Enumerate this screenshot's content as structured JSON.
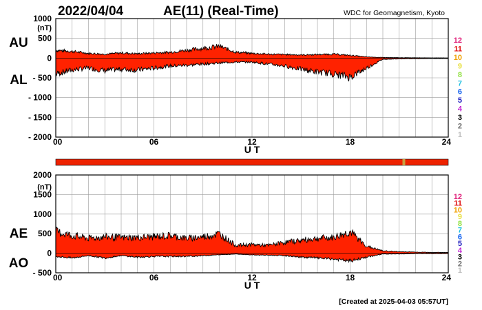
{
  "header": {
    "date": "2022/04/04",
    "title": "AE(11) (Real-Time)",
    "source": "WDC for Geomagnetism, Kyoto"
  },
  "footer": {
    "created": "[Created at 2025-04-03 05:57UT]"
  },
  "legend_levels": [
    {
      "label": "12",
      "color": "#e0207a"
    },
    {
      "label": "11",
      "color": "#e01010"
    },
    {
      "label": "10",
      "color": "#f0a000"
    },
    {
      "label": "9",
      "color": "#e8e040"
    },
    {
      "label": "8",
      "color": "#90e040"
    },
    {
      "label": "7",
      "color": "#20c0e0"
    },
    {
      "label": "6",
      "color": "#1060f0"
    },
    {
      "label": "5",
      "color": "#2020c0"
    },
    {
      "label": "4",
      "color": "#c020d0"
    },
    {
      "label": "3",
      "color": "#000000"
    },
    {
      "label": "2",
      "color": "#707070"
    },
    {
      "label": "1",
      "color": "#c0c0c0"
    }
  ],
  "quality_bar": {
    "main_color": "#ee2200",
    "marker_at_hour": 21.2,
    "marker_color": "#c8a040"
  },
  "chart_data": [
    {
      "type": "area",
      "panel": "AU/AL",
      "series_labels": [
        "AU",
        "AL"
      ],
      "unit_label": "(nT)",
      "xlabel": "U T",
      "xlim": [
        0,
        24
      ],
      "xticks": [
        "00",
        "06",
        "12",
        "18",
        "24"
      ],
      "ylim": [
        -2000,
        1000
      ],
      "yticks": [
        {
          "value": 1000,
          "label": "1000"
        },
        {
          "value": 500,
          "label": "500"
        },
        {
          "value": 0,
          "label": "0"
        },
        {
          "value": -500,
          "label": "- 500"
        },
        {
          "value": -1000,
          "label": "- 1000"
        },
        {
          "value": -1500,
          "label": "- 1500"
        },
        {
          "value": -2000,
          "label": "- 2000"
        }
      ],
      "grid": true,
      "fill_color": "#ff2200",
      "x": [
        0,
        1,
        2,
        3,
        4,
        5,
        6,
        7,
        8,
        9,
        10,
        11,
        12,
        13,
        14,
        15,
        16,
        17,
        18,
        19,
        20,
        21,
        22,
        23,
        24
      ],
      "upper": [
        200,
        170,
        120,
        100,
        130,
        110,
        130,
        150,
        200,
        250,
        300,
        150,
        120,
        100,
        90,
        80,
        90,
        100,
        70,
        30,
        15,
        10,
        10,
        5,
        5
      ],
      "lower": [
        -400,
        -300,
        -250,
        -320,
        -280,
        -300,
        -250,
        -200,
        -180,
        -150,
        -120,
        -100,
        -100,
        -150,
        -200,
        -280,
        -350,
        -400,
        -480,
        -250,
        -30,
        -20,
        -15,
        -10,
        -10
      ]
    },
    {
      "type": "area",
      "panel": "AE/AO",
      "series_labels": [
        "AE",
        "AO"
      ],
      "unit_label": "(nT)",
      "xlabel": "U T",
      "xlim": [
        0,
        24
      ],
      "xticks": [
        "00",
        "06",
        "12",
        "18",
        "24"
      ],
      "ylim": [
        -500,
        2000
      ],
      "yticks": [
        {
          "value": 2000,
          "label": "2000"
        },
        {
          "value": 1500,
          "label": "1500"
        },
        {
          "value": 1000,
          "label": "1000"
        },
        {
          "value": 500,
          "label": "500"
        },
        {
          "value": 0,
          "label": "0"
        },
        {
          "value": -500,
          "label": "- 500"
        }
      ],
      "grid": true,
      "fill_color": "#ff2200",
      "x": [
        0,
        1,
        2,
        3,
        4,
        5,
        6,
        7,
        8,
        9,
        10,
        11,
        12,
        13,
        14,
        15,
        16,
        17,
        18,
        19,
        20,
        21,
        22,
        23,
        24
      ],
      "upper": [
        550,
        450,
        380,
        420,
        400,
        400,
        420,
        450,
        380,
        420,
        500,
        200,
        220,
        200,
        280,
        330,
        380,
        400,
        550,
        180,
        60,
        40,
        30,
        20,
        20
      ],
      "lower": [
        -80,
        -120,
        -60,
        -120,
        -60,
        -100,
        -80,
        -80,
        -80,
        -60,
        -40,
        -20,
        -40,
        -50,
        -60,
        -100,
        -120,
        -150,
        -200,
        -100,
        -20,
        -20,
        -10,
        -10,
        -10
      ]
    }
  ]
}
